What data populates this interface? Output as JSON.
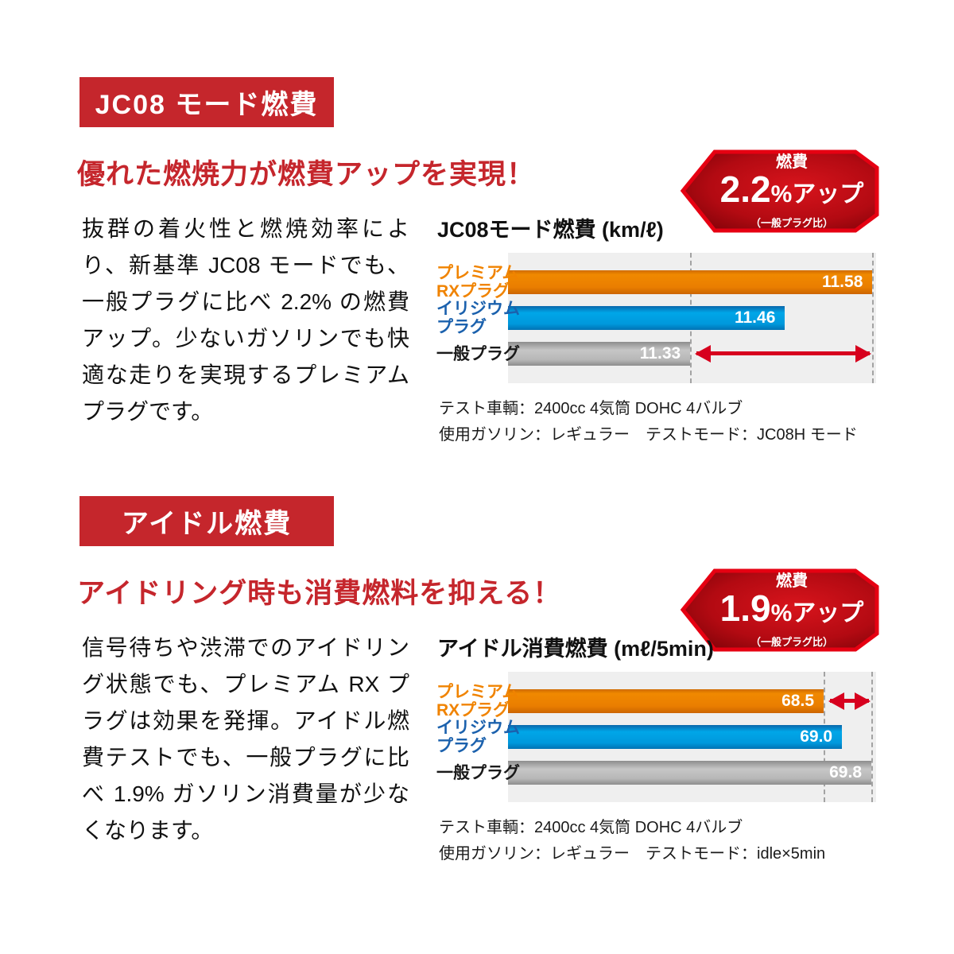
{
  "colors": {
    "accent_red": "#c5262c",
    "callout_border": "#e60012",
    "callout_fill_dark": "#6f0005",
    "callout_fill_bright": "#d8141c",
    "arrow_red": "#d7001e",
    "chart_bg": "#efefef",
    "bar_orange": "#e87c00",
    "bar_blue": "#00a0e2",
    "bar_gray": "#b2b2b2",
    "label_orange": "#f08300",
    "label_blue": "#1b61ad",
    "label_black": "#1a1a1a"
  },
  "sections": [
    {
      "badge": "JC08 モード燃費",
      "headline": "優れた燃焼力が燃費アップを実現！",
      "body": "抜群の着火性と燃焼効率により、新基準 JC08 モードでも、一般プラグに比べ 2.2% の燃費アップ。少ないガソリンでも快適な走りを実現するプレミアムプラグです。",
      "callout": {
        "small": "燃費",
        "big": "2.2",
        "unit": "%アップ",
        "sub": "（一般プラグ比）"
      },
      "chart_title": "JC08モード燃費 (km/ℓ)",
      "notes": [
        "テスト車輌：2400cc 4気筒 DOHC 4バルブ",
        "使用ガソリン：レギュラー　テストモード：JC08H モード"
      ]
    },
    {
      "badge": "アイドル燃費",
      "headline": "アイドリング時も消費燃料を抑える！",
      "body": "信号待ちや渋滞でのアイドリング状態でも、プレミアム RX プラグは効果を発揮。アイドル燃費テストでも、一般プラグに比べ 1.9% ガソリン消費量が少なくなります。",
      "callout": {
        "small": "燃費",
        "big": "1.9",
        "unit": "%アップ",
        "sub": "（一般プラグ比）"
      },
      "chart_title": "アイドル消費燃費 (mℓ/5min)",
      "notes": [
        "テスト車輌：2400cc 4気筒 DOHC 4バルブ",
        "使用ガソリン：レギュラー　テストモード：idle×5min"
      ]
    }
  ],
  "chart_data": [
    {
      "type": "bar",
      "orientation": "horizontal",
      "title": "JC08モード燃費 (km/ℓ)",
      "unit": "km/ℓ",
      "categories": [
        "プレミアムRXプラグ",
        "イリジウムプラグ",
        "一般プラグ"
      ],
      "category_lines": [
        [
          "プレミアム",
          "RXプラグ"
        ],
        [
          "イリジウム",
          "プラグ"
        ],
        [
          "一般プラグ"
        ]
      ],
      "category_colors": [
        "#f08300",
        "#1b61ad",
        "#1a1a1a"
      ],
      "values": [
        11.58,
        11.46,
        11.33
      ],
      "value_labels": [
        "11.58",
        "11.46",
        "11.33"
      ],
      "bar_styles": [
        "orange",
        "blue",
        "gray"
      ],
      "bar_colors": [
        "#e87c00",
        "#00a0e2",
        "#b2b2b2"
      ],
      "xlim": [
        11.08,
        11.585
      ],
      "ref_lines": [
        11.33,
        11.58
      ],
      "arrow": {
        "row": 2,
        "from": 11.33,
        "to": 11.58
      },
      "grid": false,
      "legend_position": "left-category-labels",
      "annotation": "燃費2.2%アップ（一般プラグ比）"
    },
    {
      "type": "bar",
      "orientation": "horizontal",
      "title": "アイドル消費燃費 (mℓ/5min)",
      "unit": "mℓ/5min",
      "categories": [
        "プレミアムRXプラグ",
        "イリジウムプラグ",
        "一般プラグ"
      ],
      "category_lines": [
        [
          "プレミアム",
          "RXプラグ"
        ],
        [
          "イリジウム",
          "プラグ"
        ],
        [
          "一般プラグ"
        ]
      ],
      "category_colors": [
        "#f08300",
        "#1b61ad",
        "#1a1a1a"
      ],
      "values": [
        68.5,
        69.0,
        69.8
      ],
      "value_labels": [
        "68.5",
        "69.0",
        "69.8"
      ],
      "bar_styles": [
        "orange",
        "blue",
        "gray"
      ],
      "bar_colors": [
        "#e87c00",
        "#00a0e2",
        "#b2b2b2"
      ],
      "xlim": [
        59.9,
        69.93
      ],
      "ref_lines": [
        68.5,
        69.8
      ],
      "arrow": {
        "row": 0,
        "from": 68.5,
        "to": 69.8
      },
      "grid": false,
      "legend_position": "left-category-labels",
      "annotation": "燃費1.9%アップ（一般プラグ比）"
    }
  ]
}
